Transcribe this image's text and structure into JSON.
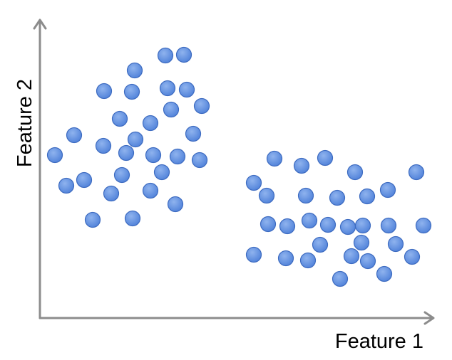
{
  "chart_data": {
    "type": "scatter",
    "title": "",
    "xlabel": "Feature 1",
    "ylabel": "Feature 2",
    "xlim": [
      0,
      550
    ],
    "ylim": [
      0,
      380
    ],
    "grid": false,
    "legend": "none",
    "marker_color": "#4f81d9",
    "marker_edge_color": "#3d6bc0",
    "axis_color": "#8c8c8c",
    "series": [
      {
        "values": [
          {
            "x": 176,
            "y": 369
          },
          {
            "x": 202,
            "y": 370
          },
          {
            "x": 133,
            "y": 348
          },
          {
            "x": 90,
            "y": 319
          },
          {
            "x": 129,
            "y": 318
          },
          {
            "x": 179,
            "y": 323
          },
          {
            "x": 206,
            "y": 321
          },
          {
            "x": 227,
            "y": 298
          },
          {
            "x": 112,
            "y": 280
          },
          {
            "x": 155,
            "y": 274
          },
          {
            "x": 184,
            "y": 293
          },
          {
            "x": 215,
            "y": 259
          },
          {
            "x": 48,
            "y": 257
          },
          {
            "x": 134,
            "y": 251
          },
          {
            "x": 89,
            "y": 242
          },
          {
            "x": 121,
            "y": 232
          },
          {
            "x": 159,
            "y": 229
          },
          {
            "x": 193,
            "y": 227
          },
          {
            "x": 224,
            "y": 222
          },
          {
            "x": 21,
            "y": 229
          },
          {
            "x": 62,
            "y": 194
          },
          {
            "x": 115,
            "y": 201
          },
          {
            "x": 171,
            "y": 205
          },
          {
            "x": 37,
            "y": 186
          },
          {
            "x": 100,
            "y": 175
          },
          {
            "x": 155,
            "y": 179
          },
          {
            "x": 190,
            "y": 160
          },
          {
            "x": 74,
            "y": 138
          },
          {
            "x": 130,
            "y": 140
          }
        ]
      },
      {
        "values": [
          {
            "x": 329,
            "y": 224
          },
          {
            "x": 367,
            "y": 214
          },
          {
            "x": 400,
            "y": 225
          },
          {
            "x": 442,
            "y": 205
          },
          {
            "x": 528,
            "y": 205
          },
          {
            "x": 300,
            "y": 190
          },
          {
            "x": 318,
            "y": 172
          },
          {
            "x": 373,
            "y": 172
          },
          {
            "x": 417,
            "y": 169
          },
          {
            "x": 459,
            "y": 171
          },
          {
            "x": 488,
            "y": 180
          },
          {
            "x": 320,
            "y": 132
          },
          {
            "x": 347,
            "y": 129
          },
          {
            "x": 378,
            "y": 137
          },
          {
            "x": 404,
            "y": 131
          },
          {
            "x": 432,
            "y": 128
          },
          {
            "x": 453,
            "y": 130
          },
          {
            "x": 489,
            "y": 130
          },
          {
            "x": 538,
            "y": 130
          },
          {
            "x": 393,
            "y": 103
          },
          {
            "x": 451,
            "y": 106
          },
          {
            "x": 499,
            "y": 104
          },
          {
            "x": 300,
            "y": 89
          },
          {
            "x": 345,
            "y": 84
          },
          {
            "x": 376,
            "y": 81
          },
          {
            "x": 437,
            "y": 87
          },
          {
            "x": 460,
            "y": 80
          },
          {
            "x": 522,
            "y": 86
          },
          {
            "x": 483,
            "y": 62
          },
          {
            "x": 421,
            "y": 55
          }
        ]
      }
    ]
  }
}
